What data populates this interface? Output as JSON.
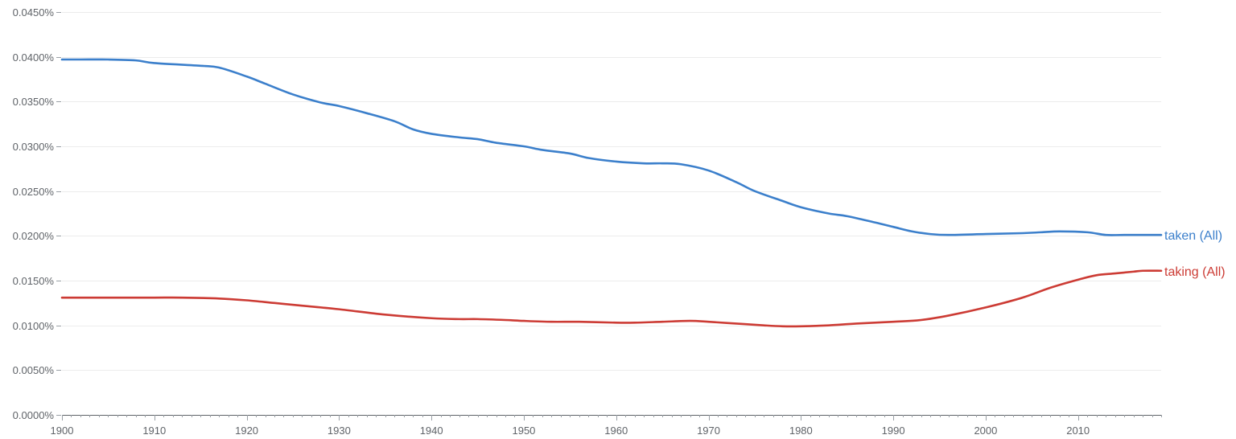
{
  "chart_data": {
    "type": "line",
    "title": "",
    "xlabel": "",
    "ylabel": "",
    "xlim": [
      1900,
      2019
    ],
    "ylim": [
      0,
      0.045
    ],
    "y_ticks": [
      0,
      0.005,
      0.01,
      0.015,
      0.02,
      0.025,
      0.03,
      0.035,
      0.04,
      0.045
    ],
    "y_tick_labels": [
      "0.0000%",
      "0.0050%",
      "0.0100%",
      "0.0150%",
      "0.0200%",
      "0.0250%",
      "0.0300%",
      "0.0350%",
      "0.0400%",
      "0.0450%"
    ],
    "x_ticks": [
      1900,
      1910,
      1920,
      1930,
      1940,
      1950,
      1960,
      1970,
      1980,
      1990,
      2000,
      2010
    ],
    "x_tick_labels": [
      "1900",
      "1910",
      "1920",
      "1930",
      "1940",
      "1950",
      "1960",
      "1970",
      "1980",
      "1990",
      "2000",
      "2010"
    ],
    "grid": true,
    "legend": "end-of-line labels",
    "series": [
      {
        "name": "taken (All)",
        "color": "#3b7fcb",
        "x": [
          1900,
          1902,
          1905,
          1908,
          1910,
          1915,
          1917,
          1920,
          1922,
          1925,
          1928,
          1930,
          1933,
          1936,
          1938,
          1940,
          1943,
          1945,
          1947,
          1950,
          1952,
          1955,
          1957,
          1960,
          1963,
          1965,
          1967,
          1970,
          1973,
          1975,
          1978,
          1980,
          1983,
          1985,
          1988,
          1990,
          1992,
          1994,
          1996,
          2000,
          2004,
          2006,
          2008,
          2011,
          2013,
          2015,
          2019
        ],
        "values": [
          0.0397,
          0.0397,
          0.0397,
          0.0396,
          0.0393,
          0.039,
          0.0388,
          0.0378,
          0.037,
          0.0358,
          0.0349,
          0.0345,
          0.0337,
          0.0328,
          0.0319,
          0.0314,
          0.031,
          0.0308,
          0.0304,
          0.03,
          0.0296,
          0.0292,
          0.0287,
          0.0283,
          0.0281,
          0.0281,
          0.028,
          0.0273,
          0.026,
          0.025,
          0.0239,
          0.0232,
          0.0225,
          0.0222,
          0.0215,
          0.021,
          0.0205,
          0.0202,
          0.0201,
          0.0202,
          0.0203,
          0.0204,
          0.0205,
          0.0204,
          0.0201,
          0.0201,
          0.0201
        ]
      },
      {
        "name": "taking (All)",
        "color": "#cc3b34",
        "x": [
          1900,
          1903,
          1906,
          1910,
          1913,
          1917,
          1920,
          1923,
          1926,
          1930,
          1935,
          1940,
          1943,
          1945,
          1948,
          1950,
          1953,
          1956,
          1960,
          1962,
          1965,
          1968,
          1970,
          1973,
          1976,
          1978,
          1980,
          1983,
          1986,
          1990,
          1993,
          1996,
          2000,
          2004,
          2007,
          2010,
          2012,
          2014,
          2016,
          2017,
          2019
        ],
        "values": [
          0.0131,
          0.0131,
          0.0131,
          0.0131,
          0.0131,
          0.013,
          0.0128,
          0.0125,
          0.0122,
          0.0118,
          0.0112,
          0.0108,
          0.0107,
          0.0107,
          0.0106,
          0.0105,
          0.0104,
          0.0104,
          0.0103,
          0.0103,
          0.0104,
          0.0105,
          0.0104,
          0.0102,
          0.01,
          0.0099,
          0.0099,
          0.01,
          0.0102,
          0.0104,
          0.0106,
          0.0111,
          0.012,
          0.0131,
          0.0142,
          0.0151,
          0.0156,
          0.0158,
          0.016,
          0.0161,
          0.0161
        ]
      }
    ]
  }
}
